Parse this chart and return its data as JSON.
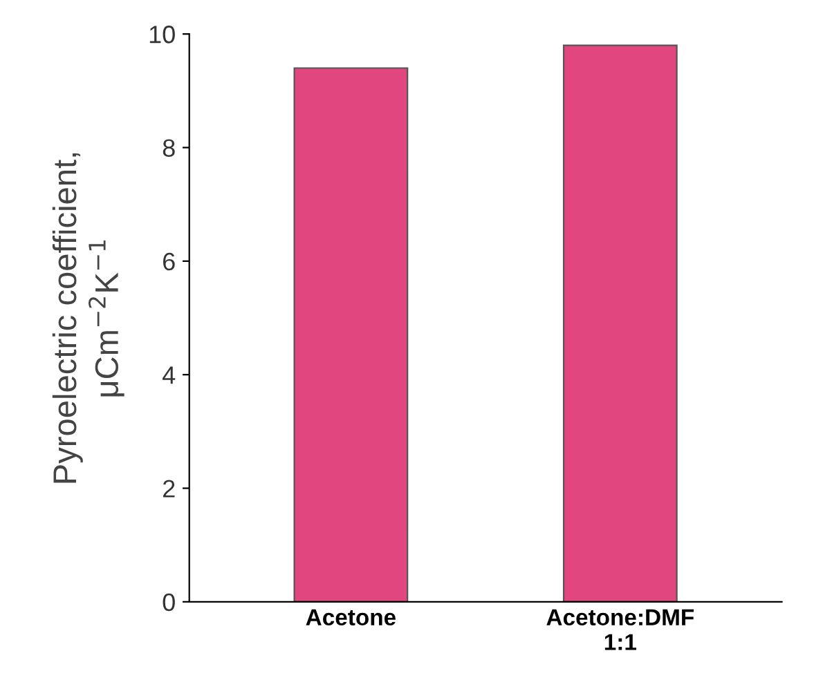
{
  "chart_data": {
    "type": "bar",
    "ylabel": "Pyroelectric coefficient,\nμCm$^{−2}$K$^{−1}$",
    "categories": [
      "Acetone",
      "Acetone:DMF\n1:1"
    ],
    "values": [
      9.4,
      9.8
    ],
    "color": "#e2467f",
    "ylim": [
      0,
      10
    ],
    "yticks": [
      0,
      2,
      4,
      6,
      8,
      10
    ],
    "grid": false,
    "legend": false
  }
}
